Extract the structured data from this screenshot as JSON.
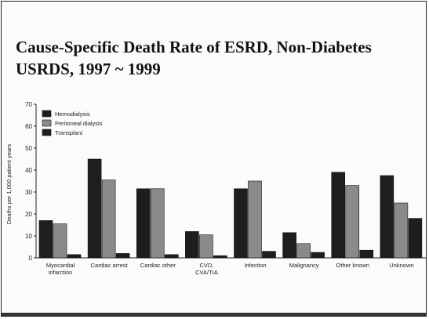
{
  "page": {
    "title_line1": "Cause-Specific Death Rate of ESRD, Non-Diabetes",
    "title_line2": "USRDS, 1997 ~ 1999"
  },
  "chart_data": {
    "type": "bar",
    "ylabel": "Deaths per 1,000 patient years",
    "xlabel": "",
    "ylim": [
      0,
      70
    ],
    "yticks": [
      0,
      10,
      20,
      30,
      40,
      50,
      60,
      70
    ],
    "grid": false,
    "legend_position": "top-left",
    "categories": [
      [
        "Myocardial",
        "infarction"
      ],
      [
        "Cardiac arrest"
      ],
      [
        "Cardiac other"
      ],
      [
        "CVD,",
        "CVA/TIA"
      ],
      [
        "Infection"
      ],
      [
        "Malignancy"
      ],
      [
        "Other known"
      ],
      [
        "Unknown"
      ]
    ],
    "series": [
      {
        "name": "Hemodialysis",
        "color": "#1e1e1e",
        "values": [
          17,
          45,
          31.5,
          12,
          31.5,
          11.5,
          39,
          37.5
        ]
      },
      {
        "name": "Peritoneal dialysis",
        "color": "#8a8a8a",
        "values": [
          15.5,
          35.5,
          31.5,
          10.5,
          35,
          6.5,
          33,
          25
        ]
      },
      {
        "name": "Transplant",
        "color": "#1e1e1e",
        "values": [
          1.5,
          2,
          1.5,
          1,
          3,
          2.5,
          3.5,
          18
        ]
      }
    ]
  }
}
